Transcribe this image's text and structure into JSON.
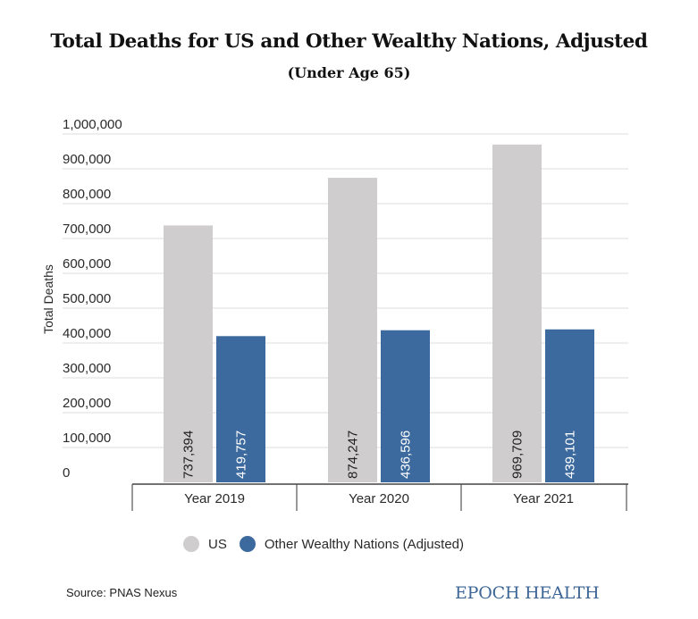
{
  "chart_data": {
    "type": "bar",
    "title": "Total Deaths for US and Other Wealthy Nations, Adjusted",
    "subtitle": "(Under Age 65)",
    "xlabel": "",
    "ylabel": "Total Deaths",
    "ylim": [
      0,
      1000000
    ],
    "yticks": [
      0,
      100000,
      200000,
      300000,
      400000,
      500000,
      600000,
      700000,
      800000,
      900000,
      1000000
    ],
    "ytick_labels": [
      "0",
      "100,000",
      "200,000",
      "300,000",
      "400,000",
      "500,000",
      "600,000",
      "700,000",
      "800,000",
      "900,000",
      "1,000,000"
    ],
    "categories": [
      "Year 2019",
      "Year 2020",
      "Year 2021"
    ],
    "series": [
      {
        "name": "US",
        "color": "#cfcdcd",
        "values": [
          737394,
          874247,
          969709
        ],
        "labels": [
          "737,394",
          "874,247",
          "969,709"
        ],
        "label_color": "#222222"
      },
      {
        "name": "Other Wealthy Nations (Adjusted)",
        "color": "#3d6a9e",
        "values": [
          419757,
          436596,
          439101
        ],
        "labels": [
          "419,757",
          "436,596",
          "439,101"
        ],
        "label_color": "#ffffff"
      }
    ],
    "grid": true,
    "legend_position": "bottom"
  },
  "footer": {
    "source": "Source: PNAS Nexus",
    "brand": "EPOCH HEALTH"
  }
}
